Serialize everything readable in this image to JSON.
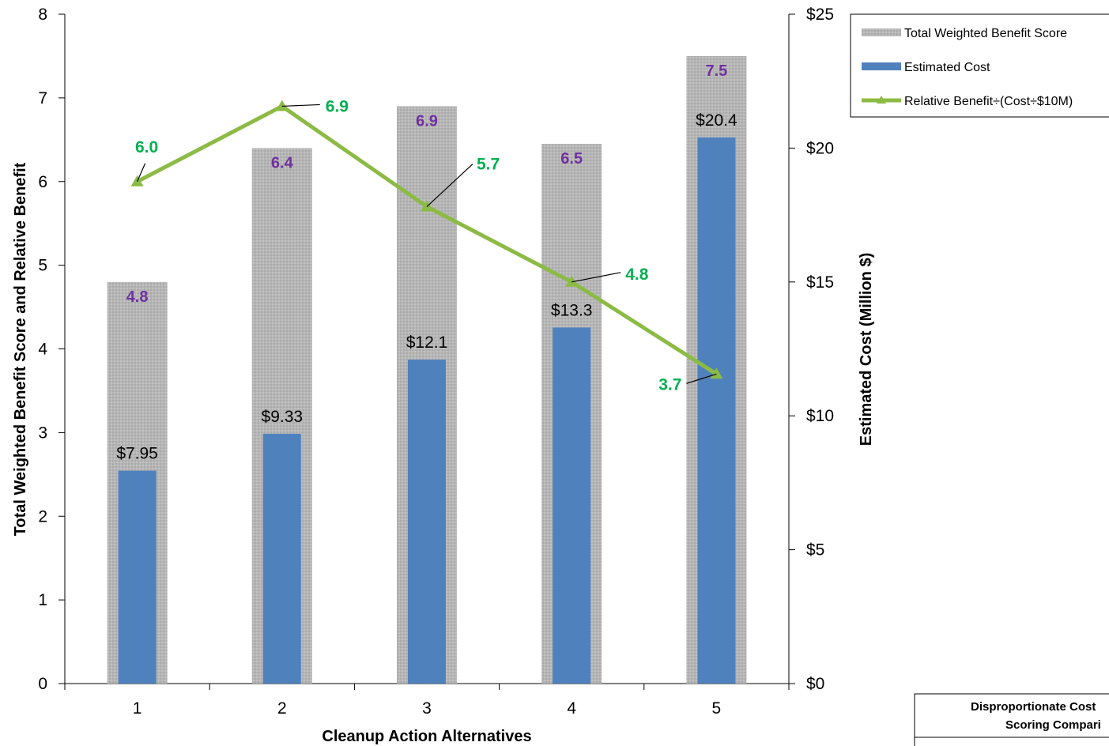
{
  "chart_data": {
    "type": "bar",
    "categories": [
      "1",
      "2",
      "3",
      "4",
      "5"
    ],
    "xlabel": "Cleanup Action Alternatives",
    "ylabel": "Total Weighted Benefit Score and Relative Benefit",
    "y2label": "Estimated Cost (Million $)",
    "ylim": [
      0,
      8
    ],
    "y2lim": [
      0,
      25
    ],
    "yticks": [
      "0",
      "1",
      "2",
      "3",
      "4",
      "5",
      "6",
      "7",
      "8"
    ],
    "y2ticks": [
      "$0",
      "$5",
      "$10",
      "$15",
      "$20",
      "$25"
    ],
    "grid": false,
    "legend_position": "top-right",
    "series": [
      {
        "name": "Total Weighted Benefit Score",
        "type": "bar",
        "axis": "left",
        "color": "#b3b3b3",
        "values": [
          4.8,
          6.4,
          6.9,
          6.45,
          7.5
        ],
        "labels": [
          "4.8",
          "6.4",
          "6.9",
          "6.5",
          "7.5"
        ],
        "label_color": "#7030a0"
      },
      {
        "name": "Estimated Cost",
        "type": "bar",
        "axis": "right",
        "color": "#4f81bd",
        "values": [
          7.95,
          9.33,
          12.1,
          13.3,
          20.4
        ],
        "labels": [
          "$7.95",
          "$9.33",
          "$12.1",
          "$13.3",
          "$20.4"
        ],
        "label_color": "#000000"
      },
      {
        "name": "Relative Benefit÷(Cost÷$10M)",
        "type": "line",
        "axis": "left",
        "color": "#8cbb45",
        "values": [
          6.0,
          6.9,
          5.7,
          4.8,
          3.7
        ],
        "labels": [
          "6.0",
          "6.9",
          "5.7",
          "4.8",
          "3.7"
        ],
        "label_color": "#00b050"
      }
    ]
  },
  "legend": {
    "items": [
      {
        "label": "Total Weighted Benefit Score",
        "icon": "gray-bar-swatch"
      },
      {
        "label": "Estimated Cost",
        "icon": "blue-bar-swatch"
      },
      {
        "label": "Relative Benefit÷(Cost÷$10M)",
        "icon": "green-line-triangle-marker"
      }
    ]
  },
  "caption_box": {
    "line1": "Disproportionate Cost",
    "line2": "Scoring Compari"
  }
}
